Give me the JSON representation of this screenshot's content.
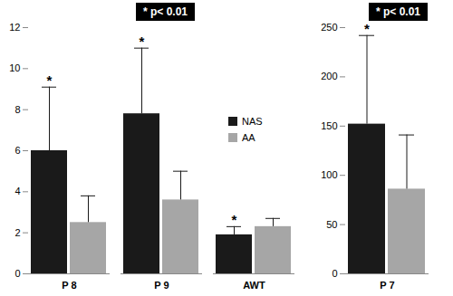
{
  "chart_data": [
    {
      "type": "bar",
      "categories": [
        "P 8",
        "P 9",
        "AWT"
      ],
      "series": [
        {
          "name": "NAS",
          "color": "#1a1a1a",
          "values": [
            6.0,
            7.8,
            1.9
          ],
          "errors": [
            3.1,
            3.2,
            0.4
          ],
          "significance_labels": [
            "*",
            "*",
            "*"
          ]
        },
        {
          "name": "AA",
          "color": "#a6a6a6",
          "values": [
            2.5,
            3.6,
            2.3
          ],
          "errors": [
            1.3,
            1.4,
            0.4
          ],
          "significance_labels": [
            null,
            null,
            null
          ]
        }
      ],
      "ylim": [
        0,
        12
      ],
      "yticks": [
        0,
        2,
        4,
        6,
        8,
        10,
        12
      ],
      "legend": "right",
      "annotations": [
        "* p< 0.01"
      ]
    },
    {
      "type": "bar",
      "categories": [
        "P 7"
      ],
      "series": [
        {
          "name": "NAS",
          "color": "#1a1a1a",
          "values": [
            152
          ],
          "errors": [
            90
          ],
          "significance_labels": [
            "*"
          ]
        },
        {
          "name": "AA",
          "color": "#a6a6a6",
          "values": [
            86
          ],
          "errors": [
            55
          ],
          "significance_labels": [
            null
          ]
        }
      ],
      "ylim": [
        0,
        250
      ],
      "yticks": [
        0,
        50,
        100,
        150,
        200,
        250
      ],
      "annotations": [
        "* p< 0.01"
      ]
    }
  ]
}
